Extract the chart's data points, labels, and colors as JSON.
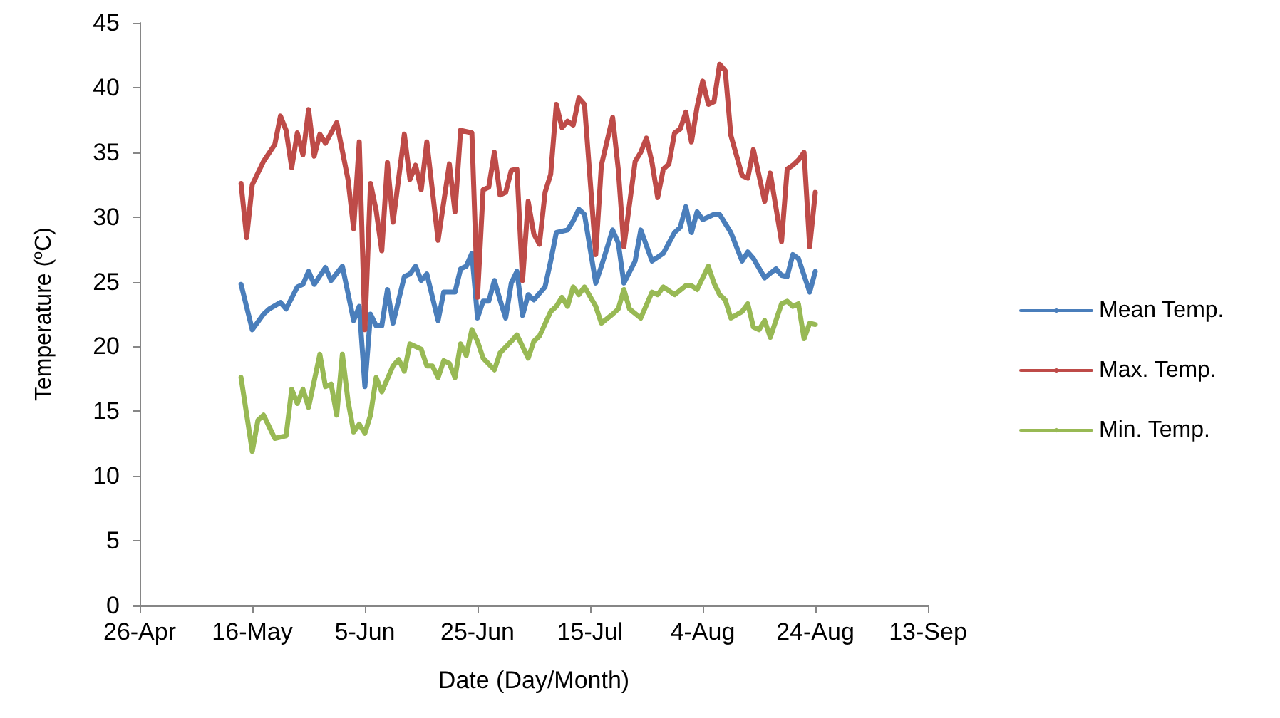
{
  "chart_data": {
    "type": "line",
    "xlabel": "Date (Day/Month)",
    "ylabel": "Temperature ($^{o}$C)",
    "xlim": [
      "--04-26",
      "--09-13"
    ],
    "xticks": [
      {
        "value": "--04-26",
        "label": "26-Apr"
      },
      {
        "value": "--05-16",
        "label": "16-May"
      },
      {
        "value": "--06-05",
        "label": "5-Jun"
      },
      {
        "value": "--06-25",
        "label": "25-Jun"
      },
      {
        "value": "--07-15",
        "label": "15-Jul"
      },
      {
        "value": "--08-04",
        "label": "4-Aug"
      },
      {
        "value": "--08-24",
        "label": "24-Aug"
      },
      {
        "value": "--09-13",
        "label": "13-Sep"
      }
    ],
    "ylim": [
      0,
      45
    ],
    "yticks": [
      0,
      5,
      10,
      15,
      20,
      25,
      30,
      35,
      40,
      45
    ],
    "grid": false,
    "legend": "right",
    "marker": "none",
    "line_style": "solid",
    "series": [
      {
        "name": "Mean Temp.",
        "color": "#4a7ebb",
        "x": [
          "--05-14",
          "--05-16",
          "--05-18",
          "--05-19",
          "--05-21",
          "--05-22",
          "--05-24",
          "--05-25",
          "--05-26",
          "--05-27",
          "--05-29",
          "--05-30",
          "--06-01",
          "--06-03",
          "--06-04",
          "--06-05",
          "--06-06",
          "--06-07",
          "--06-08",
          "--06-09",
          "--06-10",
          "--06-12",
          "--06-13",
          "--06-14",
          "--06-15",
          "--06-16",
          "--06-18",
          "--06-19",
          "--06-21",
          "--06-22",
          "--06-23",
          "--06-24",
          "--06-25",
          "--06-26",
          "--06-27",
          "--06-28",
          "--06-29",
          "--06-30",
          "--07-01",
          "--07-02",
          "--07-03",
          "--07-04",
          "--07-05",
          "--07-07",
          "--07-08",
          "--07-09",
          "--07-11",
          "--07-12",
          "--07-13",
          "--07-14",
          "--07-16",
          "--07-17",
          "--07-19",
          "--07-20",
          "--07-21",
          "--07-23",
          "--07-24",
          "--07-26",
          "--07-28",
          "--07-30",
          "--07-31",
          "--08-01",
          "--08-02",
          "--08-03",
          "--08-04",
          "--08-06",
          "--08-07",
          "--08-09",
          "--08-11",
          "--08-12",
          "--08-13",
          "--08-15",
          "--08-17",
          "--08-18",
          "--08-19",
          "--08-20",
          "--08-21",
          "--08-23",
          "--08-24"
        ],
        "values": [
          24.8,
          21.3,
          22.5,
          22.9,
          23.4,
          22.9,
          24.6,
          24.8,
          25.8,
          24.8,
          26.1,
          25.1,
          26.2,
          22.0,
          23.1,
          16.9,
          22.5,
          21.6,
          21.6,
          24.4,
          21.8,
          25.4,
          25.6,
          26.2,
          25.1,
          25.6,
          22.0,
          24.2,
          24.2,
          26.0,
          26.2,
          27.2,
          22.2,
          23.5,
          23.5,
          25.1,
          23.6,
          22.2,
          24.9,
          25.8,
          22.4,
          24.0,
          23.6,
          24.6,
          26.6,
          28.8,
          29.0,
          29.7,
          30.6,
          30.2,
          24.9,
          26.2,
          29.0,
          28.0,
          24.9,
          26.6,
          29.0,
          26.6,
          27.2,
          28.8,
          29.2,
          30.8,
          28.8,
          30.4,
          29.8,
          30.2,
          30.2,
          28.8,
          26.6,
          27.3,
          26.8,
          25.3,
          26.0,
          25.5,
          25.4,
          27.1,
          26.8,
          24.2,
          25.8
        ]
      },
      {
        "name": "Max. Temp.",
        "color": "#be4b48",
        "x": [
          "--05-14",
          "--05-15",
          "--05-16",
          "--05-18",
          "--05-20",
          "--05-21",
          "--05-22",
          "--05-23",
          "--05-24",
          "--05-25",
          "--05-26",
          "--05-27",
          "--05-28",
          "--05-29",
          "--05-31",
          "--06-02",
          "--06-03",
          "--06-04",
          "--06-05",
          "--06-06",
          "--06-07",
          "--06-08",
          "--06-09",
          "--06-10",
          "--06-12",
          "--06-13",
          "--06-14",
          "--06-15",
          "--06-16",
          "--06-18",
          "--06-20",
          "--06-21",
          "--06-22",
          "--06-24",
          "--06-25",
          "--06-26",
          "--06-27",
          "--06-28",
          "--06-29",
          "--06-30",
          "--07-01",
          "--07-02",
          "--07-03",
          "--07-04",
          "--07-05",
          "--07-06",
          "--07-07",
          "--07-08",
          "--07-09",
          "--07-10",
          "--07-11",
          "--07-12",
          "--07-13",
          "--07-14",
          "--07-16",
          "--07-17",
          "--07-19",
          "--07-20",
          "--07-21",
          "--07-23",
          "--07-24",
          "--07-25",
          "--07-26",
          "--07-27",
          "--07-28",
          "--07-29",
          "--07-30",
          "--07-31",
          "--08-01",
          "--08-02",
          "--08-03",
          "--08-04",
          "--08-05",
          "--08-06",
          "--08-07",
          "--08-08",
          "--08-09",
          "--08-11",
          "--08-12",
          "--08-13",
          "--08-15",
          "--08-16",
          "--08-18",
          "--08-19",
          "--08-20",
          "--08-21",
          "--08-22",
          "--08-23",
          "--08-24"
        ],
        "values": [
          32.6,
          28.4,
          32.5,
          34.3,
          35.6,
          37.8,
          36.7,
          33.8,
          36.5,
          34.8,
          38.3,
          34.7,
          36.4,
          35.7,
          37.3,
          32.9,
          29.1,
          35.8,
          21.3,
          32.6,
          30.5,
          27.4,
          34.2,
          29.6,
          36.4,
          32.9,
          34.0,
          32.1,
          35.8,
          28.2,
          34.1,
          30.4,
          36.7,
          36.5,
          23.8,
          32.1,
          32.3,
          35.0,
          31.7,
          31.9,
          33.6,
          33.7,
          25.1,
          31.2,
          28.7,
          27.9,
          31.9,
          33.3,
          38.7,
          36.9,
          37.4,
          37.1,
          39.2,
          38.7,
          27.1,
          34.0,
          37.7,
          33.7,
          27.7,
          34.3,
          35.0,
          36.1,
          34.2,
          31.5,
          33.7,
          34.1,
          36.5,
          36.8,
          38.1,
          35.8,
          38.5,
          40.5,
          38.7,
          38.9,
          41.8,
          41.3,
          36.3,
          33.2,
          33.0,
          35.2,
          31.2,
          33.4,
          28.1,
          33.7,
          34.0,
          34.4,
          35.0,
          27.7,
          31.9
        ]
      },
      {
        "name": "Min. Temp.",
        "color": "#98b954",
        "x": [
          "--05-14",
          "--05-16",
          "--05-17",
          "--05-18",
          "--05-20",
          "--05-22",
          "--05-23",
          "--05-24",
          "--05-25",
          "--05-26",
          "--05-28",
          "--05-29",
          "--05-30",
          "--05-31",
          "--06-01",
          "--06-02",
          "--06-03",
          "--06-04",
          "--06-05",
          "--06-06",
          "--06-07",
          "--06-08",
          "--06-10",
          "--06-11",
          "--06-12",
          "--06-13",
          "--06-15",
          "--06-16",
          "--06-17",
          "--06-18",
          "--06-19",
          "--06-20",
          "--06-21",
          "--06-22",
          "--06-23",
          "--06-24",
          "--06-25",
          "--06-26",
          "--06-28",
          "--06-29",
          "--07-01",
          "--07-02",
          "--07-04",
          "--07-05",
          "--07-06",
          "--07-08",
          "--07-09",
          "--07-10",
          "--07-11",
          "--07-12",
          "--07-13",
          "--07-14",
          "--07-16",
          "--07-17",
          "--07-19",
          "--07-20",
          "--07-21",
          "--07-22",
          "--07-24",
          "--07-26",
          "--07-27",
          "--07-28",
          "--07-30",
          "--08-01",
          "--08-02",
          "--08-03",
          "--08-05",
          "--08-06",
          "--08-07",
          "--08-08",
          "--08-09",
          "--08-11",
          "--08-12",
          "--08-13",
          "--08-14",
          "--08-15",
          "--08-16",
          "--08-18",
          "--08-19",
          "--08-20",
          "--08-21",
          "--08-22",
          "--08-23",
          "--08-24"
        ],
        "values": [
          17.6,
          11.9,
          14.3,
          14.7,
          12.9,
          13.1,
          16.7,
          15.6,
          16.7,
          15.3,
          19.4,
          16.9,
          17.1,
          14.7,
          19.4,
          15.8,
          13.4,
          14.0,
          13.3,
          14.7,
          17.6,
          16.5,
          18.5,
          19.0,
          18.1,
          20.2,
          19.8,
          18.5,
          18.5,
          17.6,
          18.9,
          18.7,
          17.6,
          20.2,
          19.3,
          21.3,
          20.4,
          19.1,
          18.2,
          19.5,
          20.4,
          20.9,
          19.1,
          20.4,
          20.8,
          22.7,
          23.1,
          23.8,
          23.1,
          24.6,
          24.0,
          24.6,
          23.1,
          21.8,
          22.5,
          22.9,
          24.4,
          22.9,
          22.2,
          24.2,
          24.0,
          24.6,
          24.0,
          24.7,
          24.7,
          24.4,
          26.2,
          24.9,
          24.0,
          23.6,
          22.2,
          22.7,
          23.3,
          21.5,
          21.3,
          22.0,
          20.7,
          23.3,
          23.5,
          23.1,
          23.3,
          20.6,
          21.8,
          21.7
        ]
      }
    ]
  }
}
